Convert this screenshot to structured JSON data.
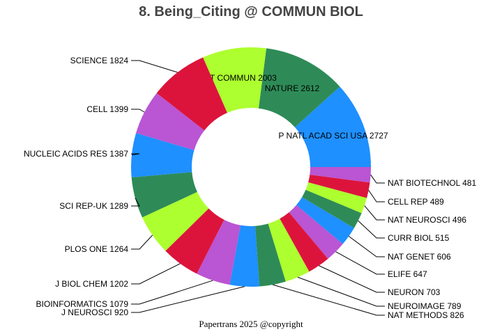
{
  "chart_data": {
    "type": "pie",
    "donut": true,
    "title": "8. Being_Citing @ COMMUN BIOL",
    "start": "3 o'clock, counterclockwise, descending",
    "slices": [
      {
        "label": "P NATL ACAD SCI USA",
        "value": 2727,
        "color": "#1e90ff"
      },
      {
        "label": "NATURE",
        "value": 2612,
        "color": "#2e8b57"
      },
      {
        "label": "NAT COMMUN",
        "value": 2003,
        "color": "#adff2f"
      },
      {
        "label": "SCIENCE",
        "value": 1824,
        "color": "#dc143c"
      },
      {
        "label": "CELL",
        "value": 1399,
        "color": "#ba55d3"
      },
      {
        "label": "NUCLEIC ACIDS RES",
        "value": 1387,
        "color": "#1e90ff"
      },
      {
        "label": "SCI REP-UK",
        "value": 1289,
        "color": "#2e8b57"
      },
      {
        "label": "PLOS ONE",
        "value": 1264,
        "color": "#adff2f"
      },
      {
        "label": "J BIOL CHEM",
        "value": 1202,
        "color": "#dc143c"
      },
      {
        "label": "BIOINFORMATICS",
        "value": 1079,
        "color": "#ba55d3"
      },
      {
        "label": "J NEUROSCI",
        "value": 920,
        "color": "#1e90ff"
      },
      {
        "label": "NAT METHODS",
        "value": 826,
        "color": "#2e8b57"
      },
      {
        "label": "NEUROIMAGE",
        "value": 789,
        "color": "#adff2f"
      },
      {
        "label": "NEURON",
        "value": 703,
        "color": "#dc143c"
      },
      {
        "label": "ELIFE",
        "value": 647,
        "color": "#ba55d3"
      },
      {
        "label": "NAT GENET",
        "value": 606,
        "color": "#1e90ff"
      },
      {
        "label": "CURR BIOL",
        "value": 515,
        "color": "#2e8b57"
      },
      {
        "label": "NAT NEUROSCI",
        "value": 496,
        "color": "#adff2f"
      },
      {
        "label": "CELL REP",
        "value": 489,
        "color": "#dc143c"
      },
      {
        "label": "NAT BIOTECHNOL",
        "value": 481,
        "color": "#ba55d3"
      }
    ]
  },
  "footer": "Papertrans 2025 @copyright"
}
